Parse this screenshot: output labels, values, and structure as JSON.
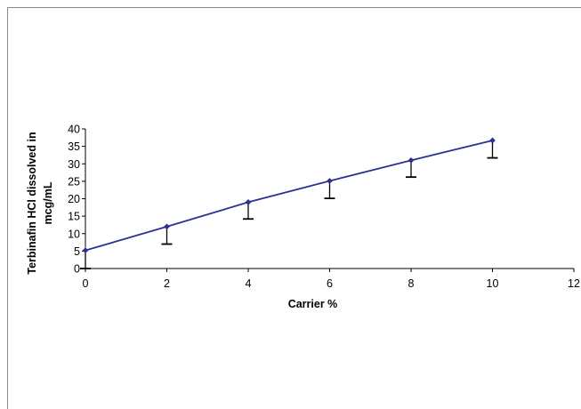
{
  "chart_data": {
    "type": "line",
    "title": "",
    "xlabel": "Carrier %",
    "ylabel_lines": [
      "Terbinafin HCl dissolved in",
      "mcg/mL"
    ],
    "xlim": [
      0,
      12
    ],
    "ylim": [
      0,
      40
    ],
    "xticks": [
      0,
      2,
      4,
      6,
      8,
      10,
      12
    ],
    "yticks": [
      0,
      5,
      10,
      15,
      20,
      25,
      30,
      35,
      40
    ],
    "grid": false,
    "legend": "none",
    "series": [
      {
        "x": [
          0,
          2,
          4,
          6,
          8,
          10
        ],
        "values": [
          5.2,
          12.0,
          19.0,
          25.1,
          31.0,
          36.7
        ],
        "error_lower": [
          0,
          7.0,
          14.2,
          20.1,
          26.2,
          31.7
        ],
        "color": "#2e3192"
      }
    ]
  }
}
